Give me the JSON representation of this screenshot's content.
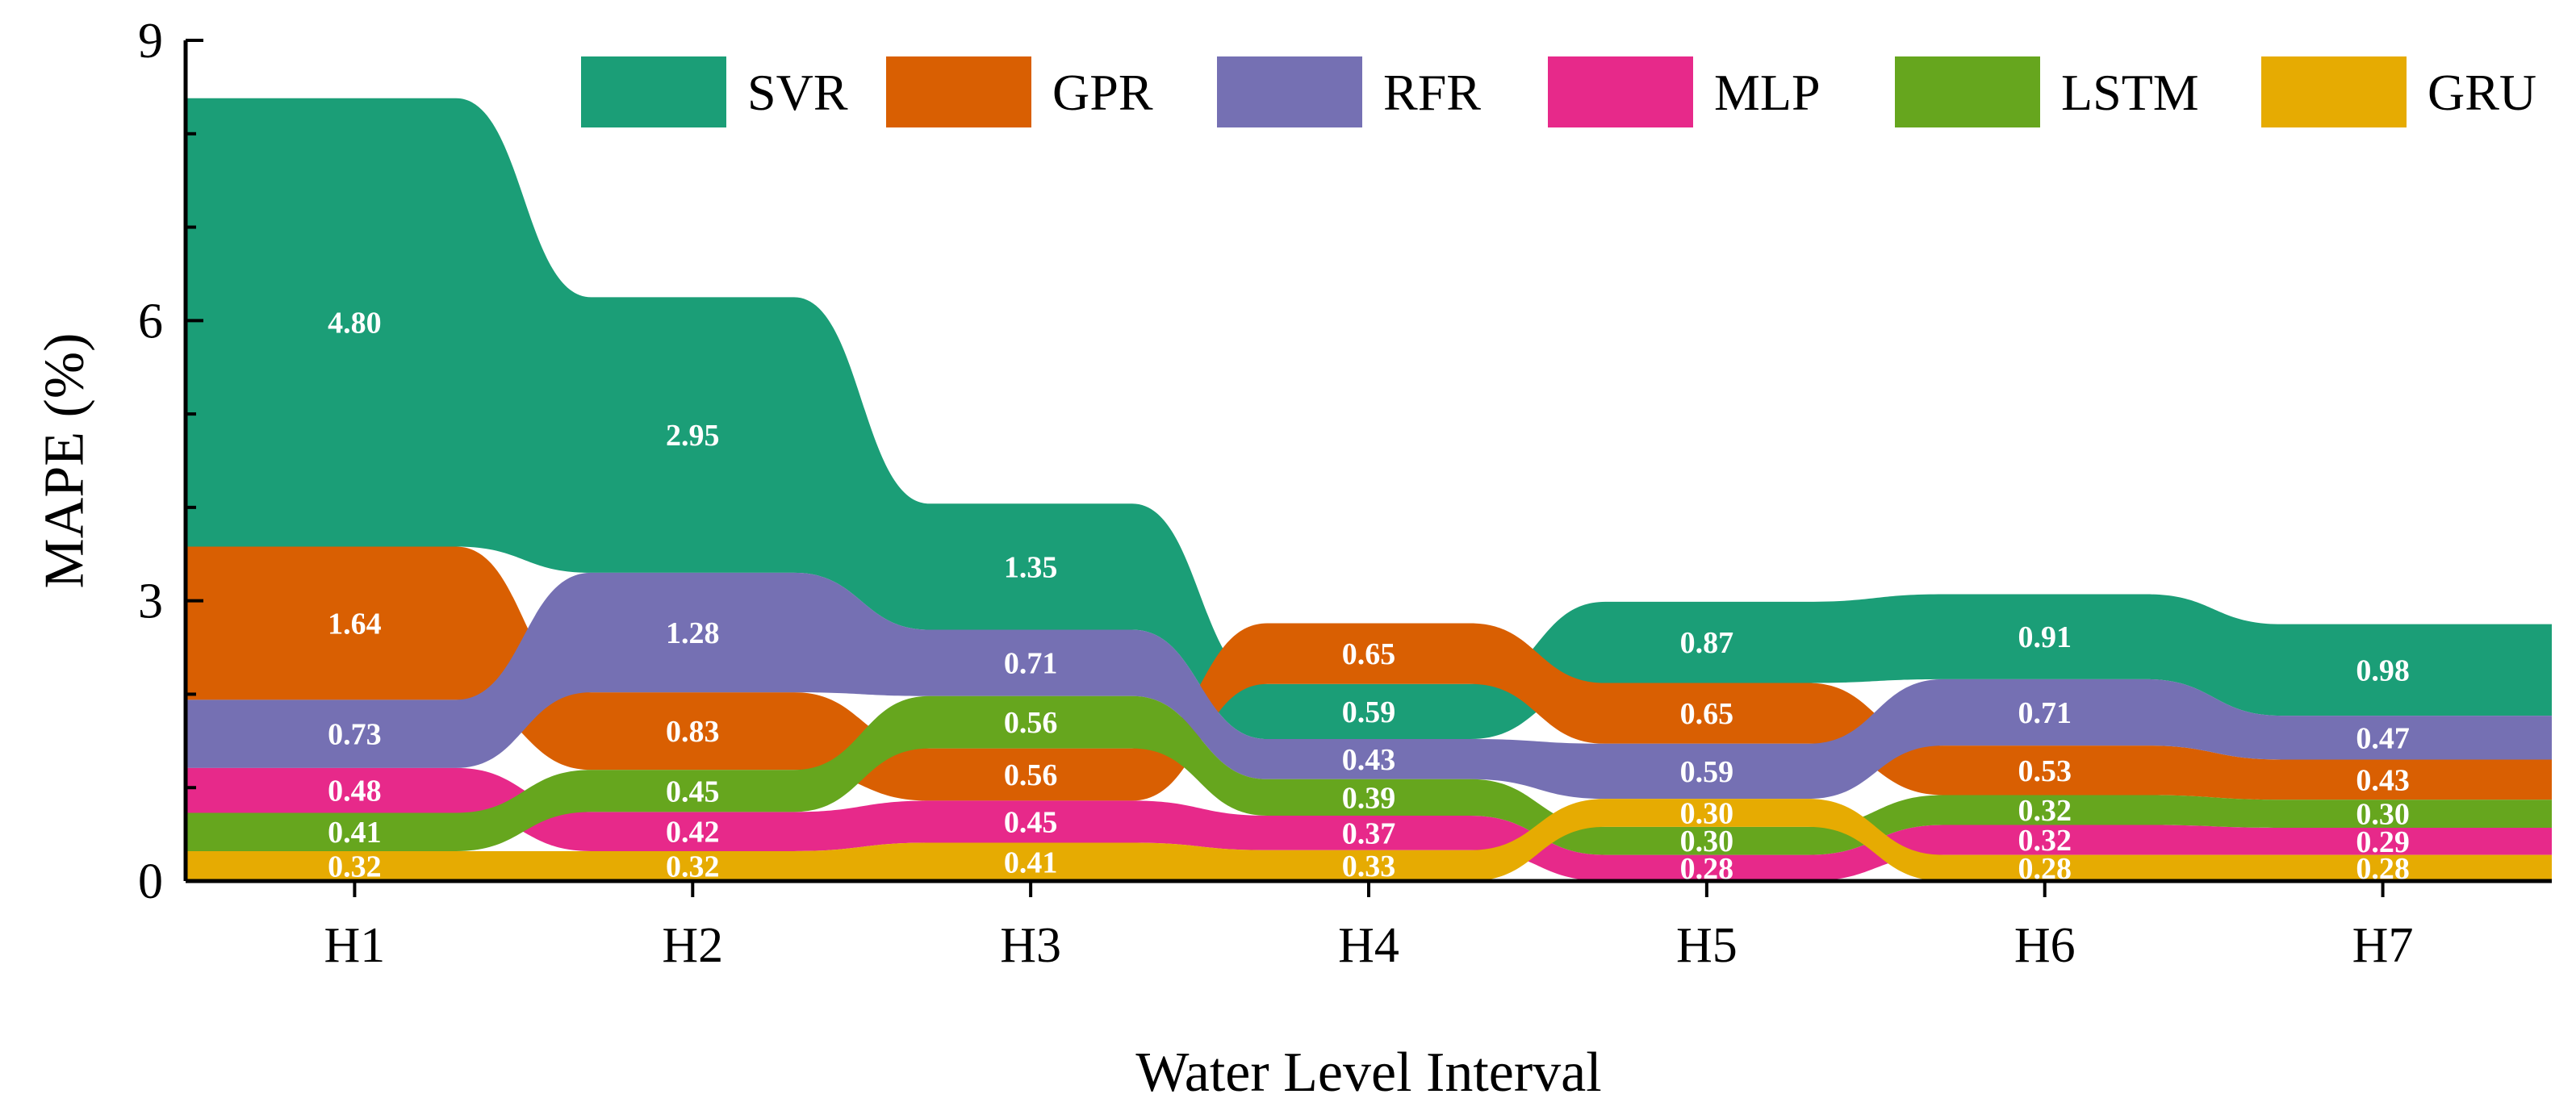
{
  "chart_data": {
    "type": "area",
    "title": "",
    "xlabel": "Water Level Interval",
    "ylabel": "MAPE (%)",
    "ylim": [
      0,
      9
    ],
    "yticks": [
      "0",
      "3",
      "6",
      "9"
    ],
    "categories": [
      "H1",
      "H2",
      "H3",
      "H4",
      "H5",
      "H6",
      "H7"
    ],
    "legend_position": "top-right",
    "series": [
      {
        "name": "SVR",
        "color": "#1b9e77",
        "values": [
          4.8,
          2.95,
          1.35,
          0.59,
          0.87,
          0.91,
          0.98
        ],
        "labels": [
          "4.80",
          "2.95",
          "1.35",
          "0.59",
          "0.87",
          "0.91",
          "0.98"
        ]
      },
      {
        "name": "GPR",
        "color": "#d95f02",
        "values": [
          1.64,
          0.83,
          0.56,
          0.65,
          0.65,
          0.53,
          0.43
        ],
        "labels": [
          "1.64",
          "0.83",
          "0.56",
          "0.65",
          "0.65",
          "0.53",
          "0.43"
        ]
      },
      {
        "name": "RFR",
        "color": "#7570b3",
        "values": [
          0.73,
          1.28,
          0.71,
          0.43,
          0.59,
          0.71,
          0.47
        ],
        "labels": [
          "0.73",
          "1.28",
          "0.71",
          "0.43",
          "0.59",
          "0.71",
          "0.47"
        ]
      },
      {
        "name": "MLP",
        "color": "#e7298a",
        "values": [
          0.48,
          0.42,
          0.45,
          0.37,
          0.28,
          0.32,
          0.29
        ],
        "labels": [
          "0.48",
          "0.42",
          "0.45",
          "0.37",
          "0.28",
          "0.32",
          "0.29"
        ]
      },
      {
        "name": "LSTM",
        "color": "#66a61e",
        "values": [
          0.41,
          0.45,
          0.56,
          0.39,
          0.3,
          0.32,
          0.3
        ],
        "labels": [
          "0.41",
          "0.45",
          "0.56",
          "0.39",
          "0.30",
          "0.32",
          "0.30"
        ]
      },
      {
        "name": "GRU",
        "color": "#e6ab02",
        "values": [
          0.32,
          0.32,
          0.41,
          0.33,
          0.3,
          0.28,
          0.28
        ],
        "labels": [
          "0.32",
          "0.32",
          "0.41",
          "0.33",
          "0.30",
          "0.28",
          "0.28"
        ]
      }
    ]
  }
}
